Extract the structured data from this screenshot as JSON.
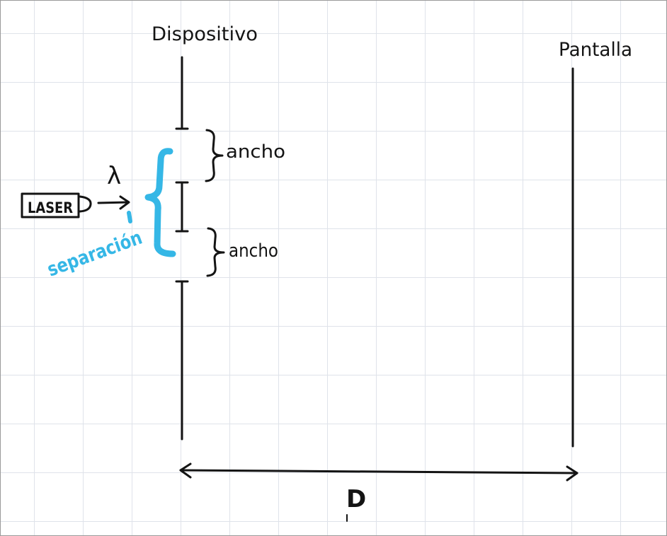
{
  "labels": {
    "device": "Dispositivo",
    "screen": "Pantalla",
    "width_top": "ancho",
    "width_bottom": "ancho",
    "wavelength": "λ",
    "laser": "LASER",
    "separation": "separación",
    "distance": "D"
  },
  "colors": {
    "ink": "#141414",
    "highlight": "#35b7e6",
    "grid": "#dfe3ea"
  }
}
